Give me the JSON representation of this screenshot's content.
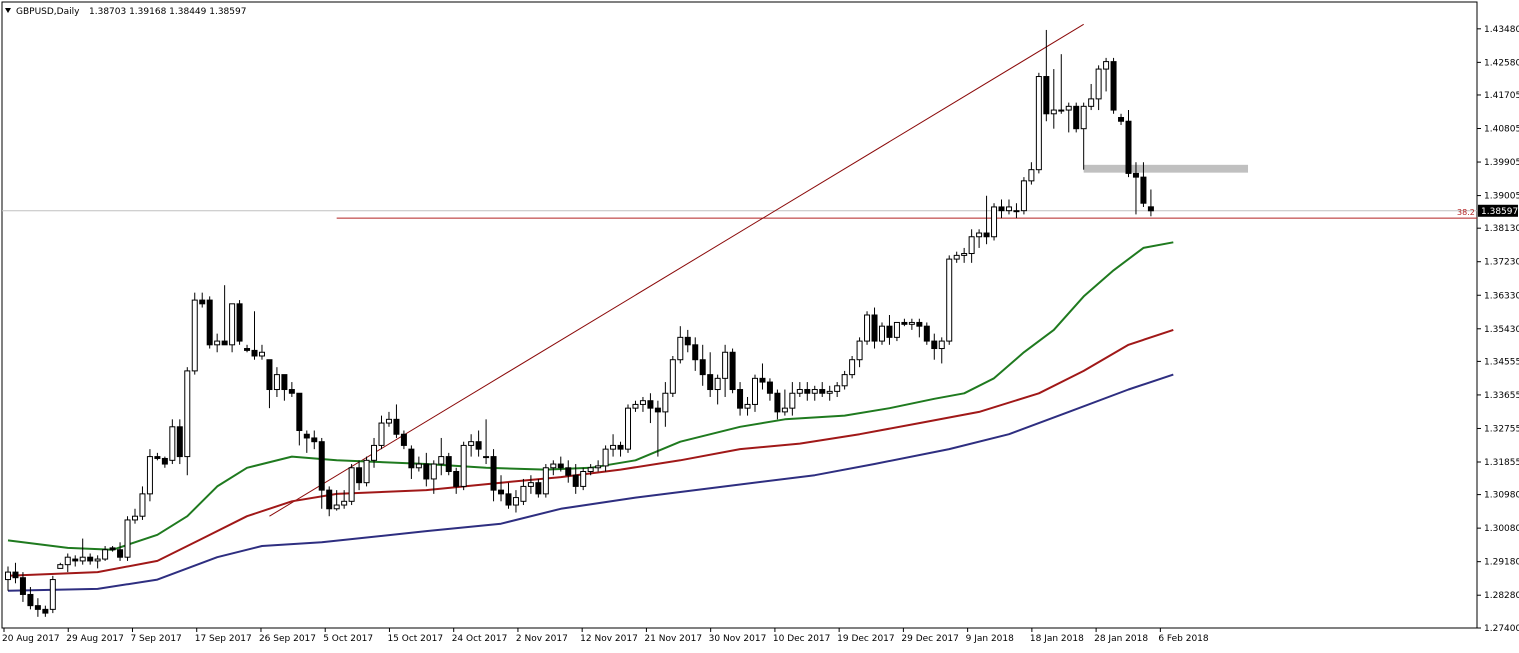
{
  "header": {
    "symbol_label": "GBPUSD,Daily",
    "ohlc_label": "1.38703 1.39168 1.38449 1.38597"
  },
  "price_axis": {
    "ticks": [
      "1.43480",
      "1.42580",
      "1.41705",
      "1.40805",
      "1.39905",
      "1.39005",
      "1.38130",
      "1.37230",
      "1.36330",
      "1.35430",
      "1.34555",
      "1.33655",
      "1.32755",
      "1.31855",
      "1.30980",
      "1.30080",
      "1.29180",
      "1.28280",
      "1.27400"
    ],
    "current_price": "1.38597",
    "fib_label": "38.2"
  },
  "time_axis": {
    "labels": [
      "20 Aug 2017",
      "29 Aug 2017",
      "7 Sep 2017",
      "17 Sep 2017",
      "26 Sep 2017",
      "5 Oct 2017",
      "15 Oct 2017",
      "24 Oct 2017",
      "2 Nov 2017",
      "12 Nov 2017",
      "21 Nov 2017",
      "30 Nov 2017",
      "10 Dec 2017",
      "19 Dec 2017",
      "29 Dec 2017",
      "9 Jan 2018",
      "18 Jan 2018",
      "28 Jan 2018",
      "6 Feb 2018"
    ]
  },
  "colors": {
    "bull_body": "#ffffff",
    "bear_body": "#000000",
    "ma_fast": "#1f7a1f",
    "ma_mid": "#a01818",
    "ma_slow": "#2e2e80",
    "trendline": "#8b0a0a",
    "fib_line": "#b22222",
    "zone": "#c0c0c0",
    "current_line": "#c0c0c0"
  },
  "chart_data": {
    "type": "candlestick",
    "y_range": [
      1.274,
      1.442
    ],
    "candles": [
      {
        "o": 1.287,
        "h": 1.2905,
        "l": 1.284,
        "c": 1.289
      },
      {
        "o": 1.289,
        "h": 1.2915,
        "l": 1.286,
        "c": 1.2875
      },
      {
        "o": 1.2875,
        "h": 1.289,
        "l": 1.281,
        "c": 1.283
      },
      {
        "o": 1.283,
        "h": 1.285,
        "l": 1.279,
        "c": 1.28
      },
      {
        "o": 1.28,
        "h": 1.282,
        "l": 1.277,
        "c": 1.279
      },
      {
        "o": 1.279,
        "h": 1.28,
        "l": 1.277,
        "c": 1.278
      },
      {
        "o": 1.279,
        "h": 1.288,
        "l": 1.278,
        "c": 1.287
      },
      {
        "o": 1.29,
        "h": 1.2915,
        "l": 1.29,
        "c": 1.291
      },
      {
        "o": 1.291,
        "h": 1.294,
        "l": 1.289,
        "c": 1.293
      },
      {
        "o": 1.2925,
        "h": 1.2935,
        "l": 1.2905,
        "c": 1.292
      },
      {
        "o": 1.292,
        "h": 1.298,
        "l": 1.291,
        "c": 1.293
      },
      {
        "o": 1.293,
        "h": 1.294,
        "l": 1.291,
        "c": 1.292
      },
      {
        "o": 1.292,
        "h": 1.2935,
        "l": 1.29,
        "c": 1.2925
      },
      {
        "o": 1.2925,
        "h": 1.296,
        "l": 1.292,
        "c": 1.295
      },
      {
        "o": 1.2955,
        "h": 1.296,
        "l": 1.2945,
        "c": 1.295
      },
      {
        "o": 1.295,
        "h": 1.297,
        "l": 1.292,
        "c": 1.293
      },
      {
        "o": 1.293,
        "h": 1.304,
        "l": 1.292,
        "c": 1.303
      },
      {
        "o": 1.303,
        "h": 1.306,
        "l": 1.302,
        "c": 1.304
      },
      {
        "o": 1.304,
        "h": 1.312,
        "l": 1.303,
        "c": 1.31
      },
      {
        "o": 1.31,
        "h": 1.322,
        "l": 1.308,
        "c": 1.32
      },
      {
        "o": 1.32,
        "h": 1.321,
        "l": 1.319,
        "c": 1.3195
      },
      {
        "o": 1.3195,
        "h": 1.32,
        "l": 1.317,
        "c": 1.318
      },
      {
        "o": 1.319,
        "h": 1.33,
        "l": 1.318,
        "c": 1.328
      },
      {
        "o": 1.328,
        "h": 1.33,
        "l": 1.318,
        "c": 1.32
      },
      {
        "o": 1.32,
        "h": 1.344,
        "l": 1.315,
        "c": 1.343
      },
      {
        "o": 1.343,
        "h": 1.364,
        "l": 1.342,
        "c": 1.362
      },
      {
        "o": 1.362,
        "h": 1.364,
        "l": 1.36,
        "c": 1.361
      },
      {
        "o": 1.362,
        "h": 1.363,
        "l": 1.349,
        "c": 1.35
      },
      {
        "o": 1.35,
        "h": 1.353,
        "l": 1.348,
        "c": 1.351
      },
      {
        "o": 1.351,
        "h": 1.366,
        "l": 1.35,
        "c": 1.35
      },
      {
        "o": 1.35,
        "h": 1.361,
        "l": 1.348,
        "c": 1.361
      },
      {
        "o": 1.361,
        "h": 1.362,
        "l": 1.35,
        "c": 1.351
      },
      {
        "o": 1.349,
        "h": 1.35,
        "l": 1.348,
        "c": 1.3485
      },
      {
        "o": 1.3485,
        "h": 1.359,
        "l": 1.346,
        "c": 1.347
      },
      {
        "o": 1.347,
        "h": 1.35,
        "l": 1.346,
        "c": 1.348
      },
      {
        "o": 1.346,
        "h": 1.346,
        "l": 1.333,
        "c": 1.338
      },
      {
        "o": 1.338,
        "h": 1.344,
        "l": 1.336,
        "c": 1.342
      },
      {
        "o": 1.342,
        "h": 1.342,
        "l": 1.335,
        "c": 1.338
      },
      {
        "o": 1.338,
        "h": 1.34,
        "l": 1.336,
        "c": 1.337
      },
      {
        "o": 1.337,
        "h": 1.337,
        "l": 1.323,
        "c": 1.327
      },
      {
        "o": 1.326,
        "h": 1.327,
        "l": 1.321,
        "c": 1.325
      },
      {
        "o": 1.325,
        "h": 1.327,
        "l": 1.322,
        "c": 1.324
      },
      {
        "o": 1.324,
        "h": 1.325,
        "l": 1.306,
        "c": 1.311
      },
      {
        "o": 1.311,
        "h": 1.312,
        "l": 1.304,
        "c": 1.306
      },
      {
        "o": 1.306,
        "h": 1.311,
        "l": 1.3055,
        "c": 1.307
      },
      {
        "o": 1.307,
        "h": 1.311,
        "l": 1.306,
        "c": 1.308
      },
      {
        "o": 1.308,
        "h": 1.318,
        "l": 1.307,
        "c": 1.317
      },
      {
        "o": 1.317,
        "h": 1.319,
        "l": 1.311,
        "c": 1.313
      },
      {
        "o": 1.313,
        "h": 1.32,
        "l": 1.312,
        "c": 1.319
      },
      {
        "o": 1.319,
        "h": 1.325,
        "l": 1.317,
        "c": 1.323
      },
      {
        "o": 1.323,
        "h": 1.331,
        "l": 1.322,
        "c": 1.329
      },
      {
        "o": 1.329,
        "h": 1.332,
        "l": 1.328,
        "c": 1.33
      },
      {
        "o": 1.33,
        "h": 1.334,
        "l": 1.325,
        "c": 1.326
      },
      {
        "o": 1.326,
        "h": 1.327,
        "l": 1.322,
        "c": 1.323
      },
      {
        "o": 1.322,
        "h": 1.323,
        "l": 1.314,
        "c": 1.317
      },
      {
        "o": 1.317,
        "h": 1.32,
        "l": 1.316,
        "c": 1.318
      },
      {
        "o": 1.318,
        "h": 1.321,
        "l": 1.312,
        "c": 1.314
      },
      {
        "o": 1.314,
        "h": 1.319,
        "l": 1.31,
        "c": 1.318
      },
      {
        "o": 1.318,
        "h": 1.325,
        "l": 1.315,
        "c": 1.32
      },
      {
        "o": 1.32,
        "h": 1.321,
        "l": 1.315,
        "c": 1.316
      },
      {
        "o": 1.316,
        "h": 1.317,
        "l": 1.31,
        "c": 1.312
      },
      {
        "o": 1.312,
        "h": 1.324,
        "l": 1.311,
        "c": 1.323
      },
      {
        "o": 1.323,
        "h": 1.326,
        "l": 1.32,
        "c": 1.324
      },
      {
        "o": 1.324,
        "h": 1.327,
        "l": 1.32,
        "c": 1.322
      },
      {
        "o": 1.32,
        "h": 1.33,
        "l": 1.318,
        "c": 1.32
      },
      {
        "o": 1.32,
        "h": 1.322,
        "l": 1.308,
        "c": 1.311
      },
      {
        "o": 1.311,
        "h": 1.315,
        "l": 1.308,
        "c": 1.31
      },
      {
        "o": 1.31,
        "h": 1.313,
        "l": 1.306,
        "c": 1.307
      },
      {
        "o": 1.307,
        "h": 1.311,
        "l": 1.305,
        "c": 1.309
      },
      {
        "o": 1.308,
        "h": 1.314,
        "l": 1.307,
        "c": 1.312
      },
      {
        "o": 1.312,
        "h": 1.315,
        "l": 1.31,
        "c": 1.313
      },
      {
        "o": 1.313,
        "h": 1.314,
        "l": 1.309,
        "c": 1.31
      },
      {
        "o": 1.31,
        "h": 1.318,
        "l": 1.309,
        "c": 1.317
      },
      {
        "o": 1.317,
        "h": 1.319,
        "l": 1.315,
        "c": 1.318
      },
      {
        "o": 1.318,
        "h": 1.32,
        "l": 1.316,
        "c": 1.317
      },
      {
        "o": 1.317,
        "h": 1.319,
        "l": 1.313,
        "c": 1.315
      },
      {
        "o": 1.315,
        "h": 1.318,
        "l": 1.31,
        "c": 1.312
      },
      {
        "o": 1.312,
        "h": 1.317,
        "l": 1.311,
        "c": 1.316
      },
      {
        "o": 1.316,
        "h": 1.318,
        "l": 1.315,
        "c": 1.317
      },
      {
        "o": 1.317,
        "h": 1.319,
        "l": 1.316,
        "c": 1.3175
      },
      {
        "o": 1.3175,
        "h": 1.323,
        "l": 1.316,
        "c": 1.322
      },
      {
        "o": 1.322,
        "h": 1.326,
        "l": 1.32,
        "c": 1.323
      },
      {
        "o": 1.323,
        "h": 1.324,
        "l": 1.32,
        "c": 1.322
      },
      {
        "o": 1.322,
        "h": 1.334,
        "l": 1.321,
        "c": 1.333
      },
      {
        "o": 1.333,
        "h": 1.335,
        "l": 1.332,
        "c": 1.334
      },
      {
        "o": 1.334,
        "h": 1.336,
        "l": 1.332,
        "c": 1.335
      },
      {
        "o": 1.335,
        "h": 1.337,
        "l": 1.329,
        "c": 1.333
      },
      {
        "o": 1.333,
        "h": 1.335,
        "l": 1.32,
        "c": 1.332
      },
      {
        "o": 1.332,
        "h": 1.34,
        "l": 1.328,
        "c": 1.337
      },
      {
        "o": 1.337,
        "h": 1.347,
        "l": 1.336,
        "c": 1.346
      },
      {
        "o": 1.346,
        "h": 1.355,
        "l": 1.345,
        "c": 1.352
      },
      {
        "o": 1.352,
        "h": 1.354,
        "l": 1.348,
        "c": 1.35
      },
      {
        "o": 1.35,
        "h": 1.352,
        "l": 1.343,
        "c": 1.346
      },
      {
        "o": 1.346,
        "h": 1.35,
        "l": 1.339,
        "c": 1.342
      },
      {
        "o": 1.342,
        "h": 1.348,
        "l": 1.336,
        "c": 1.338
      },
      {
        "o": 1.338,
        "h": 1.342,
        "l": 1.334,
        "c": 1.341
      },
      {
        "o": 1.341,
        "h": 1.35,
        "l": 1.336,
        "c": 1.348
      },
      {
        "o": 1.348,
        "h": 1.349,
        "l": 1.337,
        "c": 1.338
      },
      {
        "o": 1.338,
        "h": 1.34,
        "l": 1.331,
        "c": 1.333
      },
      {
        "o": 1.333,
        "h": 1.336,
        "l": 1.331,
        "c": 1.334
      },
      {
        "o": 1.334,
        "h": 1.342,
        "l": 1.332,
        "c": 1.341
      },
      {
        "o": 1.341,
        "h": 1.345,
        "l": 1.338,
        "c": 1.34
      },
      {
        "o": 1.34,
        "h": 1.341,
        "l": 1.335,
        "c": 1.337
      },
      {
        "o": 1.337,
        "h": 1.338,
        "l": 1.33,
        "c": 1.332
      },
      {
        "o": 1.332,
        "h": 1.338,
        "l": 1.331,
        "c": 1.333
      },
      {
        "o": 1.333,
        "h": 1.34,
        "l": 1.331,
        "c": 1.337
      },
      {
        "o": 1.337,
        "h": 1.34,
        "l": 1.336,
        "c": 1.338
      },
      {
        "o": 1.338,
        "h": 1.34,
        "l": 1.335,
        "c": 1.337
      },
      {
        "o": 1.337,
        "h": 1.339,
        "l": 1.335,
        "c": 1.338
      },
      {
        "o": 1.338,
        "h": 1.34,
        "l": 1.336,
        "c": 1.337
      },
      {
        "o": 1.337,
        "h": 1.339,
        "l": 1.335,
        "c": 1.3375
      },
      {
        "o": 1.3375,
        "h": 1.34,
        "l": 1.336,
        "c": 1.339
      },
      {
        "o": 1.339,
        "h": 1.343,
        "l": 1.338,
        "c": 1.342
      },
      {
        "o": 1.342,
        "h": 1.347,
        "l": 1.341,
        "c": 1.346
      },
      {
        "o": 1.346,
        "h": 1.352,
        "l": 1.344,
        "c": 1.351
      },
      {
        "o": 1.351,
        "h": 1.359,
        "l": 1.35,
        "c": 1.358
      },
      {
        "o": 1.358,
        "h": 1.36,
        "l": 1.349,
        "c": 1.351
      },
      {
        "o": 1.351,
        "h": 1.356,
        "l": 1.35,
        "c": 1.355
      },
      {
        "o": 1.355,
        "h": 1.358,
        "l": 1.35,
        "c": 1.352
      },
      {
        "o": 1.352,
        "h": 1.356,
        "l": 1.351,
        "c": 1.356
      },
      {
        "o": 1.356,
        "h": 1.357,
        "l": 1.355,
        "c": 1.3555
      },
      {
        "o": 1.3555,
        "h": 1.357,
        "l": 1.354,
        "c": 1.356
      },
      {
        "o": 1.356,
        "h": 1.357,
        "l": 1.352,
        "c": 1.355
      },
      {
        "o": 1.355,
        "h": 1.356,
        "l": 1.35,
        "c": 1.351
      },
      {
        "o": 1.351,
        "h": 1.353,
        "l": 1.346,
        "c": 1.349
      },
      {
        "o": 1.349,
        "h": 1.352,
        "l": 1.345,
        "c": 1.351
      },
      {
        "o": 1.351,
        "h": 1.374,
        "l": 1.35,
        "c": 1.373
      },
      {
        "o": 1.373,
        "h": 1.375,
        "l": 1.372,
        "c": 1.374
      },
      {
        "o": 1.374,
        "h": 1.376,
        "l": 1.372,
        "c": 1.3745
      },
      {
        "o": 1.3745,
        "h": 1.381,
        "l": 1.372,
        "c": 1.379
      },
      {
        "o": 1.379,
        "h": 1.381,
        "l": 1.376,
        "c": 1.38
      },
      {
        "o": 1.38,
        "h": 1.39,
        "l": 1.377,
        "c": 1.379
      },
      {
        "o": 1.379,
        "h": 1.388,
        "l": 1.378,
        "c": 1.387
      },
      {
        "o": 1.387,
        "h": 1.389,
        "l": 1.384,
        "c": 1.386
      },
      {
        "o": 1.386,
        "h": 1.389,
        "l": 1.385,
        "c": 1.387
      },
      {
        "o": 1.386,
        "h": 1.388,
        "l": 1.384,
        "c": 1.386
      },
      {
        "o": 1.386,
        "h": 1.395,
        "l": 1.385,
        "c": 1.394
      },
      {
        "o": 1.394,
        "h": 1.399,
        "l": 1.393,
        "c": 1.397
      },
      {
        "o": 1.397,
        "h": 1.423,
        "l": 1.396,
        "c": 1.422
      },
      {
        "o": 1.422,
        "h": 1.4345,
        "l": 1.41,
        "c": 1.412
      },
      {
        "o": 1.412,
        "h": 1.424,
        "l": 1.408,
        "c": 1.413
      },
      {
        "o": 1.413,
        "h": 1.428,
        "l": 1.412,
        "c": 1.413
      },
      {
        "o": 1.413,
        "h": 1.415,
        "l": 1.407,
        "c": 1.414
      },
      {
        "o": 1.414,
        "h": 1.415,
        "l": 1.407,
        "c": 1.408
      },
      {
        "o": 1.408,
        "h": 1.415,
        "l": 1.397,
        "c": 1.414
      },
      {
        "o": 1.414,
        "h": 1.42,
        "l": 1.413,
        "c": 1.416
      },
      {
        "o": 1.416,
        "h": 1.425,
        "l": 1.413,
        "c": 1.424
      },
      {
        "o": 1.424,
        "h": 1.427,
        "l": 1.418,
        "c": 1.426
      },
      {
        "o": 1.426,
        "h": 1.427,
        "l": 1.412,
        "c": 1.413
      },
      {
        "o": 1.411,
        "h": 1.412,
        "l": 1.409,
        "c": 1.41
      },
      {
        "o": 1.41,
        "h": 1.413,
        "l": 1.395,
        "c": 1.396
      },
      {
        "o": 1.396,
        "h": 1.399,
        "l": 1.385,
        "c": 1.395
      },
      {
        "o": 1.395,
        "h": 1.399,
        "l": 1.387,
        "c": 1.388
      },
      {
        "o": 1.38703,
        "h": 1.39168,
        "l": 1.38449,
        "c": 1.38597
      }
    ],
    "ma_fast": [
      [
        0,
        1.2975
      ],
      [
        8,
        1.2955
      ],
      [
        14,
        1.295
      ],
      [
        20,
        1.299
      ],
      [
        24,
        1.304
      ],
      [
        28,
        1.312
      ],
      [
        32,
        1.317
      ],
      [
        38,
        1.32
      ],
      [
        44,
        1.319
      ],
      [
        56,
        1.318
      ],
      [
        64,
        1.317
      ],
      [
        72,
        1.3165
      ],
      [
        78,
        1.317
      ],
      [
        84,
        1.319
      ],
      [
        90,
        1.324
      ],
      [
        98,
        1.328
      ],
      [
        104,
        1.33
      ],
      [
        112,
        1.331
      ],
      [
        118,
        1.333
      ],
      [
        124,
        1.3355
      ],
      [
        128,
        1.337
      ],
      [
        132,
        1.341
      ],
      [
        136,
        1.348
      ],
      [
        140,
        1.354
      ],
      [
        144,
        1.363
      ],
      [
        148,
        1.37
      ],
      [
        152,
        1.376
      ],
      [
        156,
        1.3775
      ]
    ],
    "ma_mid": [
      [
        0,
        1.288
      ],
      [
        12,
        1.289
      ],
      [
        20,
        1.292
      ],
      [
        26,
        1.298
      ],
      [
        32,
        1.304
      ],
      [
        38,
        1.308
      ],
      [
        44,
        1.31
      ],
      [
        56,
        1.311
      ],
      [
        66,
        1.313
      ],
      [
        74,
        1.3145
      ],
      [
        82,
        1.3165
      ],
      [
        90,
        1.319
      ],
      [
        98,
        1.322
      ],
      [
        106,
        1.3235
      ],
      [
        114,
        1.326
      ],
      [
        122,
        1.329
      ],
      [
        130,
        1.332
      ],
      [
        138,
        1.337
      ],
      [
        144,
        1.343
      ],
      [
        150,
        1.35
      ],
      [
        156,
        1.354
      ]
    ],
    "ma_slow": [
      [
        0,
        1.284
      ],
      [
        12,
        1.2845
      ],
      [
        20,
        1.287
      ],
      [
        28,
        1.293
      ],
      [
        34,
        1.296
      ],
      [
        42,
        1.297
      ],
      [
        56,
        1.3
      ],
      [
        66,
        1.302
      ],
      [
        74,
        1.306
      ],
      [
        84,
        1.309
      ],
      [
        96,
        1.312
      ],
      [
        108,
        1.315
      ],
      [
        116,
        1.318
      ],
      [
        126,
        1.322
      ],
      [
        134,
        1.326
      ],
      [
        142,
        1.332
      ],
      [
        150,
        1.338
      ],
      [
        156,
        1.342
      ]
    ],
    "trendline": [
      [
        35,
        1.304
      ],
      [
        144,
        1.436
      ]
    ],
    "fib_level": 1.384,
    "zone": {
      "from_index": 144,
      "to_index": 166,
      "low": 1.3962,
      "high": 1.3983
    }
  }
}
